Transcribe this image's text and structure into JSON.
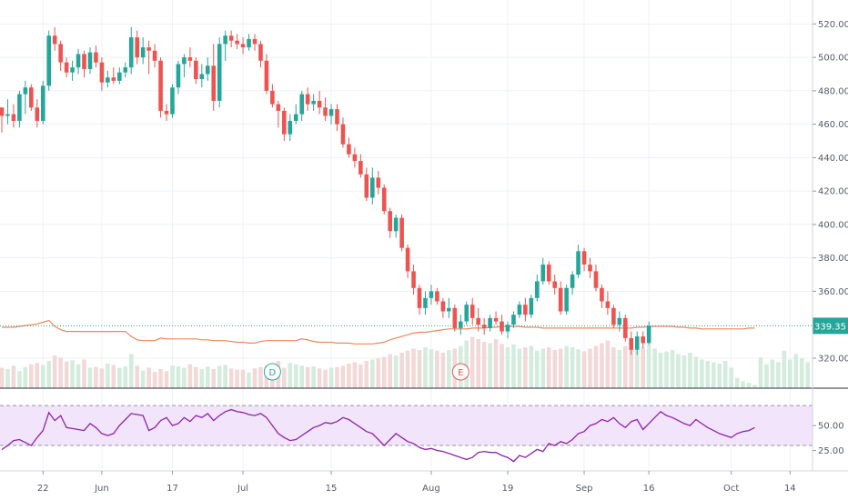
{
  "chart_data": {
    "type": "candlestick",
    "price_axis": {
      "ticks": [
        "520.00",
        "500.00",
        "480.00",
        "460.00",
        "440.00",
        "420.00",
        "400.00",
        "380.00",
        "360.00",
        "320.00"
      ],
      "ylim": [
        314,
        524
      ]
    },
    "rsi_axis": {
      "ticks": [
        "50.00",
        "25.00"
      ],
      "ylim": [
        10,
        82
      ],
      "bands": [
        30,
        70
      ]
    },
    "x_ticks": [
      {
        "label": "22",
        "bar": 7
      },
      {
        "label": "Jun",
        "bar": 17
      },
      {
        "label": "17",
        "bar": 29
      },
      {
        "label": "Jul",
        "bar": 41
      },
      {
        "label": "15",
        "bar": 56
      },
      {
        "label": "Aug",
        "bar": 73
      },
      {
        "label": "19",
        "bar": 86
      },
      {
        "label": "Sep",
        "bar": 99
      },
      {
        "label": "16",
        "bar": 110
      },
      {
        "label": "Oct",
        "bar": 124
      },
      {
        "label": "14",
        "bar": 134
      }
    ],
    "last_price": {
      "label": "339.35",
      "value": 339.35,
      "color": "#26a69a"
    },
    "events": [
      {
        "label": "D",
        "bar": 46,
        "color": "#26a69a"
      },
      {
        "label": "E",
        "bar": 78,
        "color": "#ef5350"
      }
    ],
    "colors": {
      "up": "#26a69a",
      "down": "#ef5350",
      "ma": "#f0875a",
      "rsi": "#8e24aa"
    },
    "candles": [
      [
        470,
        470,
        455,
        465
      ],
      [
        465,
        475,
        460,
        466
      ],
      [
        466,
        472,
        458,
        462
      ],
      [
        462,
        480,
        458,
        478
      ],
      [
        478,
        486,
        466,
        482
      ],
      [
        482,
        484,
        468,
        470
      ],
      [
        470,
        475,
        458,
        462
      ],
      [
        462,
        486,
        460,
        483
      ],
      [
        483,
        516,
        480,
        513
      ],
      [
        513,
        518,
        504,
        508
      ],
      [
        508,
        510,
        492,
        497
      ],
      [
        497,
        500,
        488,
        491
      ],
      [
        491,
        498,
        486,
        494
      ],
      [
        494,
        505,
        490,
        502
      ],
      [
        502,
        504,
        488,
        493
      ],
      [
        493,
        506,
        490,
        503
      ],
      [
        503,
        507,
        494,
        497
      ],
      [
        497,
        500,
        480,
        485
      ],
      [
        485,
        492,
        482,
        488
      ],
      [
        488,
        494,
        484,
        486
      ],
      [
        486,
        494,
        484,
        491
      ],
      [
        491,
        497,
        488,
        494
      ],
      [
        494,
        518,
        490,
        512
      ],
      [
        512,
        516,
        496,
        500
      ],
      [
        500,
        512,
        496,
        506
      ],
      [
        506,
        510,
        490,
        504
      ],
      [
        504,
        508,
        494,
        498
      ],
      [
        498,
        500,
        464,
        468
      ],
      [
        468,
        472,
        462,
        466
      ],
      [
        466,
        484,
        464,
        482
      ],
      [
        482,
        498,
        478,
        496
      ],
      [
        496,
        502,
        488,
        500
      ],
      [
        500,
        506,
        494,
        498
      ],
      [
        498,
        500,
        484,
        487
      ],
      [
        487,
        496,
        482,
        490
      ],
      [
        490,
        500,
        486,
        495
      ],
      [
        495,
        508,
        468,
        474
      ],
      [
        474,
        512,
        470,
        508
      ],
      [
        508,
        516,
        498,
        513
      ],
      [
        513,
        516,
        506,
        510
      ],
      [
        510,
        514,
        505,
        508
      ],
      [
        508,
        512,
        502,
        506
      ],
      [
        506,
        514,
        504,
        511
      ],
      [
        511,
        514,
        504,
        508
      ],
      [
        508,
        510,
        494,
        498
      ],
      [
        498,
        502,
        478,
        480
      ],
      [
        480,
        484,
        470,
        472
      ],
      [
        472,
        474,
        458,
        468
      ],
      [
        468,
        470,
        450,
        454
      ],
      [
        454,
        466,
        450,
        462
      ],
      [
        462,
        472,
        460,
        466
      ],
      [
        466,
        480,
        462,
        478
      ],
      [
        478,
        482,
        468,
        472
      ],
      [
        472,
        478,
        468,
        474
      ],
      [
        474,
        480,
        466,
        470
      ],
      [
        470,
        476,
        462,
        465
      ],
      [
        465,
        472,
        460,
        469
      ],
      [
        469,
        472,
        456,
        460
      ],
      [
        460,
        464,
        446,
        448
      ],
      [
        448,
        452,
        440,
        442
      ],
      [
        442,
        446,
        434,
        438
      ],
      [
        438,
        442,
        428,
        430
      ],
      [
        430,
        434,
        414,
        416
      ],
      [
        416,
        434,
        412,
        428
      ],
      [
        428,
        432,
        418,
        422
      ],
      [
        422,
        424,
        406,
        408
      ],
      [
        408,
        410,
        392,
        396
      ],
      [
        396,
        406,
        392,
        404
      ],
      [
        404,
        406,
        384,
        386
      ],
      [
        386,
        388,
        368,
        372
      ],
      [
        372,
        376,
        358,
        362
      ],
      [
        362,
        364,
        346,
        350
      ],
      [
        350,
        360,
        346,
        356
      ],
      [
        356,
        364,
        352,
        360
      ],
      [
        360,
        362,
        352,
        354
      ],
      [
        354,
        356,
        344,
        348
      ],
      [
        348,
        356,
        344,
        350
      ],
      [
        350,
        352,
        336,
        338
      ],
      [
        338,
        346,
        334,
        342
      ],
      [
        342,
        354,
        340,
        352
      ],
      [
        352,
        356,
        340,
        344
      ],
      [
        344,
        350,
        336,
        340
      ],
      [
        340,
        344,
        334,
        338
      ],
      [
        338,
        346,
        336,
        344
      ],
      [
        344,
        348,
        340,
        342
      ],
      [
        342,
        346,
        334,
        336
      ],
      [
        336,
        342,
        332,
        340
      ],
      [
        340,
        348,
        338,
        346
      ],
      [
        346,
        354,
        344,
        352
      ],
      [
        352,
        356,
        342,
        346
      ],
      [
        346,
        358,
        344,
        356
      ],
      [
        356,
        370,
        354,
        366
      ],
      [
        366,
        380,
        364,
        376
      ],
      [
        376,
        378,
        364,
        366
      ],
      [
        366,
        370,
        358,
        362
      ],
      [
        362,
        366,
        346,
        348
      ],
      [
        348,
        364,
        346,
        362
      ],
      [
        362,
        372,
        358,
        370
      ],
      [
        370,
        388,
        368,
        384
      ],
      [
        384,
        386,
        372,
        376
      ],
      [
        376,
        380,
        368,
        372
      ],
      [
        372,
        376,
        360,
        362
      ],
      [
        362,
        364,
        350,
        354
      ],
      [
        354,
        360,
        346,
        350
      ],
      [
        350,
        352,
        338,
        340
      ],
      [
        340,
        348,
        336,
        344
      ],
      [
        344,
        346,
        330,
        332
      ],
      [
        332,
        336,
        322,
        325
      ],
      [
        325,
        336,
        322,
        333
      ],
      [
        333,
        336,
        326,
        329
      ],
      [
        329,
        342,
        328,
        339.35
      ]
    ],
    "volumes": [
      0.3,
      0.28,
      0.33,
      0.25,
      0.31,
      0.35,
      0.37,
      0.34,
      0.4,
      0.48,
      0.45,
      0.39,
      0.41,
      0.35,
      0.42,
      0.3,
      0.31,
      0.29,
      0.36,
      0.34,
      0.3,
      0.32,
      0.5,
      0.33,
      0.26,
      0.3,
      0.24,
      0.28,
      0.25,
      0.33,
      0.32,
      0.3,
      0.35,
      0.31,
      0.28,
      0.32,
      0.28,
      0.33,
      0.34,
      0.29,
      0.27,
      0.27,
      0.23,
      0.29,
      0.31,
      0.33,
      0.36,
      0.4,
      0.3,
      0.37,
      0.35,
      0.33,
      0.31,
      0.32,
      0.29,
      0.27,
      0.3,
      0.31,
      0.33,
      0.36,
      0.38,
      0.35,
      0.4,
      0.42,
      0.44,
      0.46,
      0.5,
      0.48,
      0.52,
      0.55,
      0.58,
      0.56,
      0.6,
      0.57,
      0.55,
      0.52,
      0.56,
      0.58,
      0.62,
      0.7,
      0.75,
      0.72,
      0.68,
      0.66,
      0.72,
      0.65,
      0.6,
      0.64,
      0.58,
      0.6,
      0.62,
      0.55,
      0.58,
      0.6,
      0.56,
      0.58,
      0.62,
      0.6,
      0.57,
      0.54,
      0.58,
      0.62,
      0.66,
      0.7,
      0.6,
      0.56,
      0.62,
      0.58,
      0.55,
      0.6,
      0.64,
      0.58,
      0.52,
      0.54,
      0.56,
      0.5,
      0.48,
      0.52,
      0.46,
      0.42,
      0.4,
      0.38,
      0.36,
      0.4,
      0.3,
      0.15,
      0.1,
      0.08,
      0.05,
      0.45,
      0.35,
      0.42,
      0.38,
      0.55,
      0.42,
      0.5,
      0.44,
      0.38
    ],
    "ma": [
      338.5,
      338.5,
      338.5,
      339.0,
      339.5,
      340.0,
      340.5,
      341.5,
      342.5,
      339.0,
      337.0,
      336.0,
      336.0,
      336.0,
      336.0,
      336.0,
      336.0,
      336.0,
      336.0,
      336.0,
      336.0,
      336.0,
      333.0,
      331.0,
      330.5,
      330.5,
      330.5,
      332.0,
      331.5,
      331.5,
      331.5,
      331.5,
      331.5,
      331.5,
      331.0,
      331.0,
      330.5,
      330.5,
      330.5,
      330.0,
      329.5,
      329.5,
      329.0,
      329.0,
      330.0,
      330.5,
      330.5,
      330.5,
      330.5,
      330.5,
      330.5,
      331.5,
      331.0,
      330.0,
      329.5,
      329.5,
      329.5,
      329.0,
      329.0,
      329.0,
      328.5,
      328.5,
      328.5,
      328.5,
      329.0,
      329.5,
      331.0,
      332.0,
      333.0,
      334.0,
      335.0,
      335.5,
      335.5,
      336.0,
      336.5,
      337.0,
      337.5,
      337.5,
      337.5,
      337.5,
      338.0,
      338.0,
      338.0,
      338.5,
      338.5,
      339.0,
      339.0,
      339.0,
      339.0,
      338.5,
      338.5,
      338.5,
      338.0,
      338.0,
      338.0,
      338.0,
      338.0,
      338.0,
      338.0,
      338.0,
      338.0,
      338.0,
      338.0,
      338.0,
      338.0,
      338.0,
      338.0,
      338.0,
      338.5,
      338.5,
      339.0,
      339.0,
      339.0,
      339.0,
      339.0,
      338.5,
      338.5,
      338.0,
      338.0,
      337.5,
      337.5,
      337.5,
      337.5,
      337.5,
      337.5,
      337.5,
      337.5,
      338.0,
      338.0
    ],
    "rsi": [
      26,
      30,
      35,
      36,
      33,
      30,
      38,
      45,
      63,
      55,
      60,
      48,
      47,
      46,
      45,
      52,
      48,
      42,
      40,
      42,
      50,
      56,
      62,
      61,
      60,
      45,
      48,
      55,
      58,
      50,
      52,
      58,
      54,
      60,
      58,
      62,
      55,
      60,
      64,
      66,
      64,
      63,
      61,
      60,
      62,
      58,
      50,
      42,
      38,
      35,
      36,
      40,
      44,
      48,
      50,
      53,
      52,
      54,
      58,
      56,
      52,
      48,
      44,
      42,
      36,
      30,
      36,
      42,
      38,
      34,
      32,
      28,
      26,
      27,
      25,
      24,
      22,
      20,
      18,
      16,
      18,
      23,
      24,
      23,
      23,
      20,
      18,
      14,
      20,
      18,
      22,
      26,
      24,
      32,
      30,
      34,
      32,
      36,
      42,
      44,
      50,
      52,
      56,
      54,
      58,
      52,
      48,
      54,
      56,
      46,
      52,
      58,
      64,
      60,
      58,
      55,
      52,
      50,
      56,
      52,
      48,
      45,
      42,
      40,
      38,
      42,
      44,
      45,
      48
    ]
  }
}
